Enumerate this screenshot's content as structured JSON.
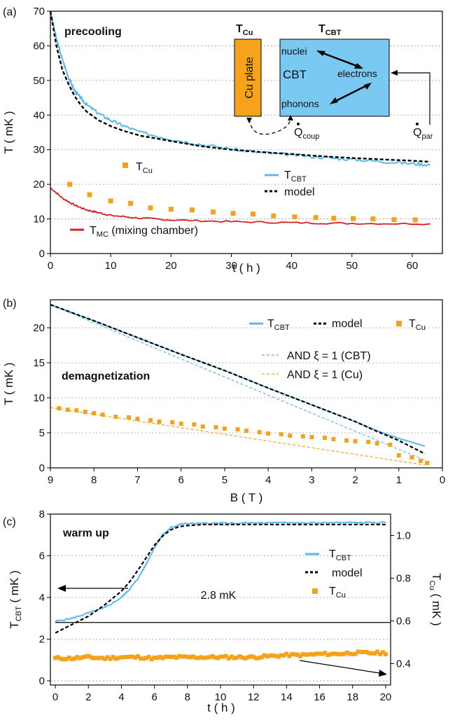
{
  "colors": {
    "cbt": "#5bb8e8",
    "model": "#000000",
    "cu": "#f4a21c",
    "mc": "#d42020",
    "cu_plate_fill": "#f6a21b",
    "cbt_box_fill": "#79c9f2"
  },
  "chart_data": [
    {
      "type": "line",
      "panel_label": "(a)",
      "annotation": "precooling",
      "xlabel": "t ( h )",
      "ylabel": "T ( mK )",
      "xlim": [
        0,
        65
      ],
      "ylim": [
        0,
        70
      ],
      "xticks": [
        0,
        10,
        20,
        30,
        40,
        50,
        60
      ],
      "yticks": [
        0,
        10,
        20,
        30,
        40,
        50,
        60,
        70
      ],
      "grid": "horizontal dotted",
      "legend": [
        {
          "key": "cu",
          "label": "T",
          "sub": "Cu"
        },
        {
          "key": "cbt",
          "label": "T",
          "sub": "CBT"
        },
        {
          "key": "model",
          "label": "model",
          "sub": ""
        },
        {
          "key": "mc",
          "label": "T",
          "sub": "MC",
          "suffix": " (mixing chamber)"
        }
      ],
      "series": {
        "cbt": {
          "x": [
            0,
            1,
            2,
            3,
            4,
            5,
            6,
            8,
            10,
            12,
            15,
            20,
            25,
            30,
            35,
            40,
            45,
            50,
            55,
            60,
            63
          ],
          "y": [
            70,
            62,
            56,
            51,
            47,
            45,
            43,
            40.5,
            38.5,
            37,
            35,
            33,
            31.5,
            30.2,
            29.2,
            28.5,
            27.8,
            27.2,
            26.6,
            26,
            25.6
          ]
        },
        "model": {
          "x": [
            0,
            1,
            2,
            3,
            4,
            5,
            6,
            8,
            10,
            12,
            15,
            20,
            25,
            30,
            35,
            40,
            45,
            50,
            55,
            60,
            63
          ],
          "y": [
            70,
            60,
            53,
            49,
            45.5,
            43,
            41,
            38.5,
            36.8,
            35.5,
            34,
            32.5,
            31,
            30,
            29.3,
            28.7,
            28.1,
            27.6,
            27.2,
            26.8,
            26.5
          ]
        },
        "mc": {
          "x": [
            0,
            2,
            4,
            6,
            8,
            10,
            15,
            20,
            30,
            40,
            50,
            63
          ],
          "y": [
            19,
            16,
            14,
            12.6,
            11.8,
            11,
            10.2,
            9.7,
            9.2,
            8.9,
            8.7,
            8.6
          ]
        },
        "cu": {
          "x": [
            3.2,
            6.5,
            10,
            13.3,
            16.6,
            20,
            23.5,
            27,
            30.3,
            33.6,
            37,
            40.5,
            44,
            47,
            50.2,
            53.5,
            57,
            60.5
          ],
          "y": [
            20,
            17,
            15.2,
            14.5,
            13.2,
            12.8,
            12.6,
            12,
            11.6,
            11.4,
            10.9,
            10.6,
            10.4,
            10.2,
            10.1,
            10,
            9.8,
            9.7
          ]
        }
      },
      "inset": {
        "title_left": "T",
        "title_left_sub": "Cu",
        "title_right": "T",
        "title_right_sub": "CBT",
        "plate_label": "Cu plate",
        "cbt_label": "CBT",
        "nuclei": "nuclei",
        "electrons": "electrons",
        "phonons": "phonons",
        "qcoup": "Q",
        "qcoup_sub": "coup",
        "qpar": "Q",
        "qpar_sub": "par"
      }
    },
    {
      "type": "line",
      "panel_label": "(b)",
      "annotation": "demagnetization",
      "xlabel": "B ( T )",
      "ylabel": "T ( mK )",
      "xlim": [
        9,
        0
      ],
      "ylim": [
        0,
        24
      ],
      "xticks": [
        9,
        8,
        7,
        6,
        5,
        4,
        3,
        2,
        1,
        0
      ],
      "yticks": [
        0,
        5,
        10,
        15,
        20
      ],
      "grid": "horizontal dotted",
      "legend": [
        {
          "key": "cbt",
          "label": "T",
          "sub": "CBT"
        },
        {
          "key": "model",
          "label": "model",
          "sub": ""
        },
        {
          "key": "cu",
          "label": "T",
          "sub": "Cu"
        },
        {
          "key": "and_cbt",
          "label": "AND ξ = 1 (CBT)",
          "sub": ""
        },
        {
          "key": "and_cu",
          "label": "AND ξ = 1 (Cu)",
          "sub": ""
        }
      ],
      "series": {
        "cbt": {
          "x": [
            9,
            8,
            7,
            6,
            5,
            4,
            3,
            2,
            1.5,
            1,
            0.4
          ],
          "y": [
            23.3,
            21,
            18.6,
            16.2,
            13.9,
            11.4,
            9,
            6.6,
            5.3,
            4.2,
            3.1
          ]
        },
        "model": {
          "x": [
            9,
            8,
            7,
            6,
            5,
            4,
            3,
            2,
            1.5,
            1,
            0.4
          ],
          "y": [
            23.3,
            21,
            18.6,
            16.2,
            13.9,
            11.4,
            9,
            6.6,
            5.2,
            3.9,
            2
          ]
        },
        "and_cbt": {
          "x": [
            9,
            0.4
          ],
          "y": [
            23.3,
            1.1
          ]
        },
        "and_cu": {
          "x": [
            9,
            0.4
          ],
          "y": [
            8.6,
            0.4
          ]
        },
        "cu": {
          "x": [
            8.8,
            8.6,
            8.4,
            8.2,
            8,
            7.8,
            7.5,
            7.2,
            7,
            6.7,
            6.5,
            6.2,
            6,
            5.7,
            5.5,
            5.2,
            5,
            4.7,
            4.5,
            4.2,
            4,
            3.7,
            3.5,
            3.2,
            3,
            2.7,
            2.5,
            2.2,
            2,
            1.7,
            1.5,
            1.2,
            1,
            0.7,
            0.5,
            0.35
          ],
          "y": [
            8.5,
            8.3,
            8.2,
            8,
            7.8,
            7.6,
            7.3,
            7.2,
            7,
            6.8,
            6.6,
            6.5,
            6.3,
            6.2,
            5.9,
            5.8,
            5.6,
            5.5,
            5.3,
            5.1,
            4.9,
            4.8,
            4.6,
            4.5,
            4.4,
            4.3,
            4.1,
            3.9,
            3.8,
            3.7,
            3.5,
            3.3,
            1.8,
            1.5,
            1,
            0.7
          ]
        }
      }
    },
    {
      "type": "line",
      "panel_label": "(c)",
      "annotation": "warm up",
      "xlabel": "t ( h )",
      "ylabel": "T",
      "ylabel_sub": "CBT",
      "ylabel_suffix": " ( mK )",
      "ylabel_right": "T",
      "ylabel_right_sub": "Cu",
      "ylabel_right_suffix": " ( mK )",
      "xlim": [
        -0.3,
        20.3
      ],
      "ylim": [
        -0.2,
        8
      ],
      "ylim_right": [
        0.3,
        1.1
      ],
      "xticks": [
        0,
        2,
        4,
        6,
        8,
        10,
        12,
        14,
        16,
        18,
        20
      ],
      "yticks": [
        0,
        2,
        4,
        6,
        8
      ],
      "yticks_right": [
        0.4,
        0.6,
        0.8,
        1.0
      ],
      "yticks_right_labels": [
        "0.4",
        "0.6",
        "0.8",
        "1.0"
      ],
      "grid": "horizontal dotted",
      "reference_line": {
        "y": 2.8,
        "label": "2.8 mK"
      },
      "legend": [
        {
          "key": "cbt",
          "label": "T",
          "sub": "CBT"
        },
        {
          "key": "model",
          "label": "model",
          "sub": ""
        },
        {
          "key": "cu",
          "label": "T",
          "sub": "Cu"
        }
      ],
      "series": {
        "cbt": {
          "x": [
            0,
            1,
            2,
            3,
            4,
            4.5,
            5,
            5.5,
            6,
            6.5,
            7,
            7.5,
            8,
            9,
            10,
            12,
            14,
            16,
            18,
            20
          ],
          "y": [
            2.85,
            3,
            3.25,
            3.5,
            4,
            4.4,
            4.9,
            5.6,
            6.4,
            7,
            7.35,
            7.5,
            7.55,
            7.55,
            7.56,
            7.57,
            7.58,
            7.58,
            7.59,
            7.6
          ]
        },
        "model": {
          "x": [
            0,
            1,
            2,
            3,
            4,
            4.5,
            5,
            5.5,
            6,
            6.5,
            7,
            7.5,
            8,
            9,
            10,
            12,
            14,
            16,
            18,
            20
          ],
          "y": [
            2.3,
            2.7,
            3.1,
            3.65,
            4.3,
            4.75,
            5.3,
            5.9,
            6.5,
            6.95,
            7.25,
            7.4,
            7.45,
            7.5,
            7.5,
            7.5,
            7.5,
            7.5,
            7.5,
            7.5
          ]
        },
        "cu_right": {
          "x": [
            0,
            1,
            2,
            3,
            4,
            5,
            6,
            7,
            8,
            9,
            10,
            11,
            12,
            13,
            14,
            15,
            16,
            17,
            18,
            19,
            20
          ],
          "y": [
            0.425,
            0.425,
            0.43,
            0.425,
            0.43,
            0.43,
            0.425,
            0.43,
            0.43,
            0.43,
            0.43,
            0.43,
            0.43,
            0.435,
            0.44,
            0.44,
            0.445,
            0.445,
            0.45,
            0.45,
            0.45
          ]
        }
      },
      "arrows": [
        "left-axis",
        "right-axis"
      ]
    }
  ]
}
